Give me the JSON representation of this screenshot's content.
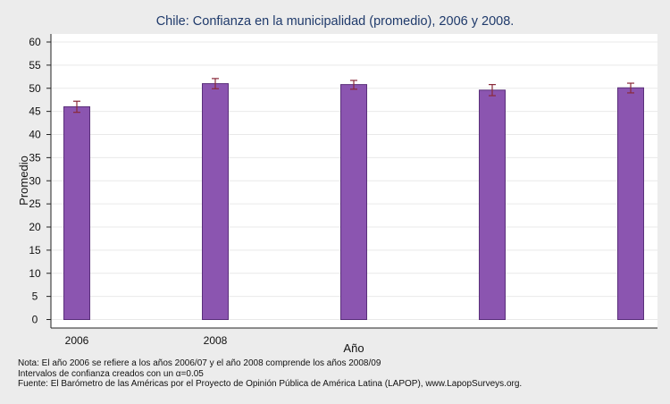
{
  "chart_data": {
    "type": "bar",
    "title": "Chile: Confianza en la municipalidad (promedio), 2006 y 2008.",
    "xlabel": "Año",
    "ylabel": "Promedio",
    "ylim": [
      0,
      62
    ],
    "yticks": [
      "0",
      "5",
      "10",
      "15",
      "20",
      "25",
      "30",
      "35",
      "40",
      "45",
      "50",
      "55",
      "60"
    ],
    "categories": [
      "2006",
      "2008",
      "",
      "",
      ""
    ],
    "values": [
      46.0,
      51.0,
      50.8,
      49.6,
      50.1
    ],
    "ci_low": [
      44.8,
      49.9,
      49.8,
      48.4,
      49.0
    ],
    "ci_high": [
      47.2,
      52.1,
      51.7,
      50.8,
      51.1
    ],
    "bar_color": "#8b55b0",
    "errorbar_color": "#8a2a3a",
    "grid": true,
    "legend": "none"
  },
  "notes": {
    "line1": "Nota: El año 2006 se refiere a los años 2006/07 y el año 2008 comprende los años 2008/09",
    "line2": "Intervalos de confianza creados con un α=0.05",
    "line3": "Fuente: El Barómetro de las Américas por el Proyecto de Opinión Pública de América Latina (LAPOP), www.LapopSurveys.org."
  }
}
